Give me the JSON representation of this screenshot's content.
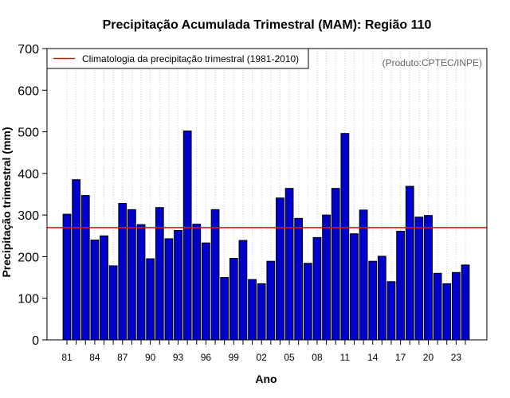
{
  "chart_data": {
    "type": "bar",
    "title": "Precipitação Acumulada Trimestral (MAM): Região 110",
    "xlabel": "Ano",
    "ylabel": "Precipitação trimestral (mm)",
    "ylim": [
      0,
      700
    ],
    "yticks": [
      0,
      100,
      200,
      300,
      400,
      500,
      600,
      700
    ],
    "grid": "vertical-dotted",
    "years": [
      1981,
      1982,
      1983,
      1984,
      1985,
      1986,
      1987,
      1988,
      1989,
      1990,
      1991,
      1992,
      1993,
      1994,
      1995,
      1996,
      1997,
      1998,
      1999,
      2000,
      2001,
      2002,
      2003,
      2004,
      2005,
      2006,
      2007,
      2008,
      2009,
      2010,
      2011,
      2012,
      2013,
      2014,
      2015,
      2016,
      2017,
      2018,
      2019,
      2020,
      2021,
      2022,
      2023,
      2024
    ],
    "xtick_labels": [
      {
        "year": 1981,
        "label": "81"
      },
      {
        "year": 1984,
        "label": "84"
      },
      {
        "year": 1987,
        "label": "87"
      },
      {
        "year": 1990,
        "label": "90"
      },
      {
        "year": 1993,
        "label": "93"
      },
      {
        "year": 1996,
        "label": "96"
      },
      {
        "year": 1999,
        "label": "99"
      },
      {
        "year": 2002,
        "label": "02"
      },
      {
        "year": 2005,
        "label": "05"
      },
      {
        "year": 2008,
        "label": "08"
      },
      {
        "year": 2011,
        "label": "11"
      },
      {
        "year": 2014,
        "label": "14"
      },
      {
        "year": 2017,
        "label": "17"
      },
      {
        "year": 2020,
        "label": "20"
      },
      {
        "year": 2023,
        "label": "23"
      }
    ],
    "values": [
      302,
      385,
      347,
      240,
      250,
      178,
      328,
      313,
      277,
      195,
      318,
      243,
      263,
      502,
      278,
      233,
      313,
      150,
      196,
      239,
      145,
      135,
      189,
      341,
      364,
      292,
      184,
      246,
      300,
      364,
      496,
      255,
      312,
      189,
      201,
      140,
      261,
      369,
      295,
      299,
      160,
      135,
      162,
      180
    ],
    "bar_color": "#0000cc",
    "reference_line": {
      "value": 270,
      "label": "Climatologia da precipitação trimestral (1981-2010)",
      "color": "#ff0000"
    },
    "legend_position": "top-left",
    "annotation": "(Produto:CPTEC/INPE)"
  }
}
